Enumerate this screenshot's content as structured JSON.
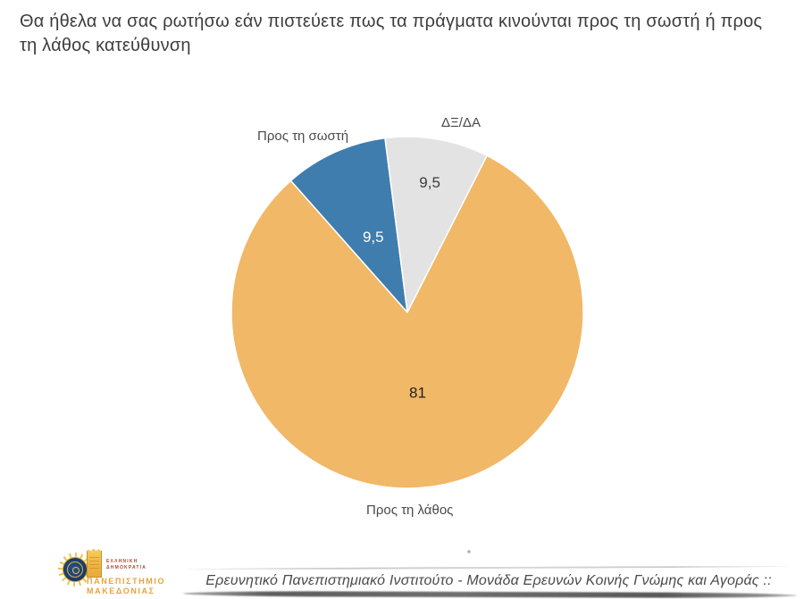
{
  "page": {
    "title": "Θα ήθελα να σας ρωτήσω εάν πιστεύετε πως τα πράγματα κινούνται προς τη σωστή ή προς τη λάθος κατεύθυνση"
  },
  "chart_data": {
    "type": "pie",
    "title": "",
    "categories": [
      "Προς τη σωστή",
      "ΔΞ/ΔΑ",
      "Προς τη λάθος"
    ],
    "values": [
      9.5,
      9.5,
      81
    ],
    "slices": [
      {
        "label": "Προς τη σωστή",
        "value": 9.5,
        "display_value": "9,5",
        "color": "#3e7dae",
        "value_color": "#ffffff",
        "label_radius_frac": 0.47
      },
      {
        "label": "ΔΞ/ΔΑ",
        "value": 9.5,
        "display_value": "9,5",
        "color": "#e3e3e4",
        "value_color": "#3d3d3d",
        "label_radius_frac": 0.75
      },
      {
        "label": "Προς τη λάθος",
        "value": 81,
        "display_value": "81",
        "color": "#f0b867",
        "value_color": "#1f1f1f",
        "label_radius_frac": 0.46
      }
    ],
    "start_angle_deg": -41.5,
    "direction": "clockwise",
    "slice_border_color": "#ffffff",
    "legend_position": "none",
    "label_style": "category names outside, values inside slices"
  },
  "footer": {
    "text": "Ερευνητικό Πανεπιστημιακό Ινστιτούτο - Μονάδα Ερευνών Κοινής Γνώμης και Αγοράς ::"
  },
  "logo": {
    "government_line1": "ΕΛΛΗΝΙΚΗ",
    "government_line2": "ΔΗΜΟΚΡΑΤΙΑ",
    "university_line1": "ΠΑΝΕΠΙΣΤΗΜΙΟ",
    "university_line2": "ΜΑΚΕΔΟΝΙΑΣ",
    "accent_color": "#e8a33c"
  }
}
